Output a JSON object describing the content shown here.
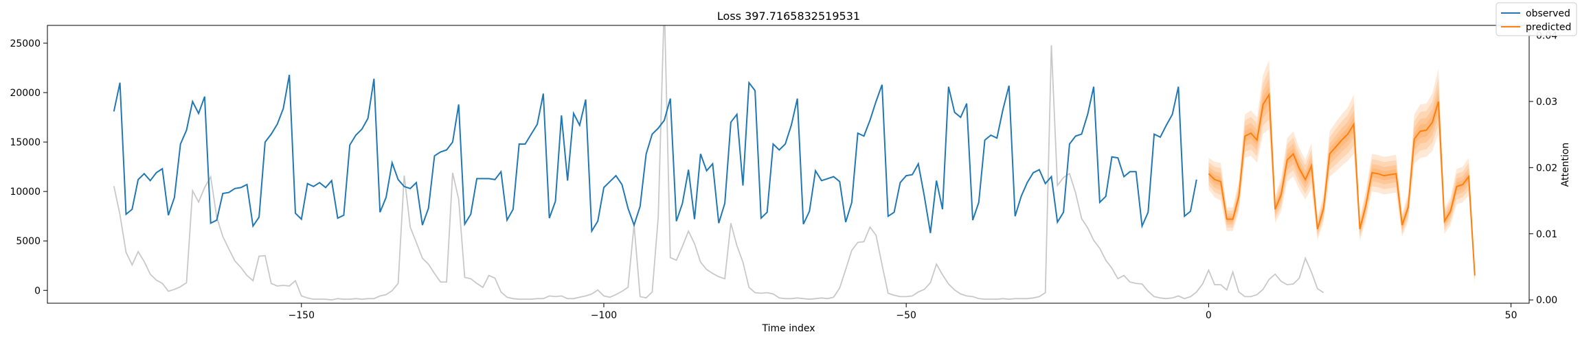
{
  "chart_data": {
    "type": "line",
    "title": "Loss 397.7165832519531",
    "xlabel": "Time index",
    "ylabel": "",
    "y2label": "Attention",
    "xlim": [
      -192,
      53
    ],
    "ylim": [
      -1300,
      26800
    ],
    "y2lim": [
      -0.0005,
      0.0415
    ],
    "xticks": [
      -150,
      -100,
      -50,
      0,
      50
    ],
    "xtick_labels": [
      "−150",
      "−100",
      "−50",
      "0",
      "50"
    ],
    "yticks": [
      0,
      5000,
      10000,
      15000,
      20000,
      25000
    ],
    "ytick_labels": [
      "0",
      "5000",
      "10000",
      "15000",
      "20000",
      "25000"
    ],
    "y2ticks": [
      0.0,
      0.01,
      0.02,
      0.03,
      0.04
    ],
    "y2tick_labels": [
      "0.00",
      "0.01",
      "0.02",
      "0.03",
      "0.04"
    ],
    "grid": false,
    "legend": {
      "placement": "top-right",
      "entries": [
        "observed",
        "predicted"
      ]
    },
    "colors": {
      "observed": "#1f77b4",
      "predicted": "#ff7f0e",
      "attention": "#c8c8c8"
    },
    "series": [
      {
        "name": "observed",
        "x_start": -181,
        "values": [
          18100,
          21000,
          7700,
          8200,
          11200,
          11800,
          11100,
          11900,
          12300,
          7600,
          9400,
          14800,
          16200,
          19100,
          17900,
          19600,
          6800,
          7100,
          9800,
          9900,
          10300,
          10400,
          10700,
          6500,
          7400,
          15000,
          15800,
          16800,
          18400,
          21800,
          7800,
          7200,
          10800,
          10500,
          10900,
          10400,
          11100,
          7300,
          7600,
          14700,
          15700,
          16300,
          17400,
          21400,
          7900,
          9400,
          12900,
          11200,
          10500,
          10300,
          10900,
          6600,
          8300,
          13600,
          14000,
          14200,
          15000,
          18800,
          6700,
          7700,
          11300,
          11300,
          11300,
          11200,
          12000,
          7100,
          8200,
          14800,
          14800,
          15800,
          16800,
          19900,
          7300,
          9000,
          17700,
          11100,
          17900,
          16700,
          19300,
          6000,
          7000,
          10400,
          11000,
          11600,
          10700,
          8300,
          6600,
          8500,
          13800,
          15800,
          16400,
          17200,
          19400,
          7000,
          8800,
          12200,
          7200,
          13800,
          12100,
          12800,
          6800,
          8800,
          17000,
          17800,
          10600,
          21000,
          20200,
          7300,
          7900,
          14800,
          14200,
          14800,
          16700,
          19400,
          6700,
          8000,
          12100,
          11100,
          11300,
          11500,
          11000,
          6900,
          8900,
          15900,
          15600,
          17200,
          19100,
          20800,
          7500,
          7900,
          10900,
          11600,
          11700,
          12800,
          9500,
          5800,
          11100,
          8200,
          20600,
          18000,
          17500,
          18900,
          7100,
          8900,
          15200,
          15700,
          15400,
          18300,
          20700,
          7500,
          9500,
          10900,
          11900,
          12200,
          10800,
          11500,
          6900,
          7900,
          14800,
          15600,
          15800,
          17800,
          20600,
          8900,
          9500,
          13500,
          13400,
          11500,
          12000,
          12000,
          6500,
          7900,
          15800,
          15500,
          16700,
          17800,
          20600,
          7500,
          8000,
          11200
        ]
      },
      {
        "name": "predicted",
        "x_start": 0,
        "values": [
          11800,
          11200,
          11000,
          7200,
          7200,
          9500,
          15600,
          15900,
          15200,
          18800,
          19800,
          8200,
          9700,
          13200,
          13800,
          12300,
          11200,
          12600,
          6200,
          8300,
          13800,
          14500,
          15200,
          15800,
          16800,
          6200,
          8600,
          11900,
          11800,
          11600,
          11700,
          11800,
          6600,
          8400,
          15300,
          16100,
          16200,
          17000,
          19100,
          7000,
          8000,
          10500,
          10700,
          11500,
          1500
        ]
      },
      {
        "name": "attention",
        "axis": "right",
        "x_start": -181,
        "values": [
          0.0172,
          0.0129,
          0.0072,
          0.0053,
          0.0073,
          0.0058,
          0.0039,
          0.003,
          0.0025,
          0.0013,
          0.0016,
          0.002,
          0.0026,
          0.0165,
          0.0148,
          0.017,
          0.0186,
          0.0125,
          0.0096,
          0.0077,
          0.0059,
          0.0049,
          0.0037,
          0.0029,
          0.0066,
          0.0067,
          0.0025,
          0.0021,
          0.0022,
          0.0021,
          0.0029,
          0.0006,
          0.0003,
          0.0001,
          0.0001,
          0.0001,
          0.0,
          0.0002,
          0.0001,
          0.0001,
          0.0002,
          0.0001,
          0.0002,
          0.0002,
          0.0006,
          0.0008,
          0.0014,
          0.0025,
          0.0188,
          0.011,
          0.0087,
          0.0063,
          0.0054,
          0.004,
          0.0027,
          0.0027,
          0.0192,
          0.0152,
          0.0034,
          0.0032,
          0.0025,
          0.0019,
          0.0037,
          0.0033,
          0.0012,
          0.0004,
          0.0002,
          0.0001,
          0.0001,
          0.0001,
          0.0002,
          0.0002,
          0.0006,
          0.0005,
          0.0006,
          0.0002,
          0.0002,
          0.0004,
          0.0006,
          0.0009,
          0.0015,
          0.0006,
          0.0004,
          0.0008,
          0.0013,
          0.0019,
          0.0114,
          0.0005,
          0.0003,
          0.0012,
          0.0125,
          0.045,
          0.0064,
          0.006,
          0.0081,
          0.0104,
          0.0085,
          0.0057,
          0.0046,
          0.004,
          0.0035,
          0.0032,
          0.0116,
          0.0082,
          0.0057,
          0.0019,
          0.0011,
          0.001,
          0.0011,
          0.0009,
          0.0003,
          0.0002,
          0.0002,
          0.0003,
          0.0002,
          0.0001,
          0.0002,
          0.0003,
          0.0002,
          0.0004,
          0.0018,
          0.0046,
          0.0075,
          0.0087,
          0.0088,
          0.011,
          0.0098,
          0.0053,
          0.001,
          0.0007,
          0.0005,
          0.0005,
          0.0006,
          0.0012,
          0.0016,
          0.0026,
          0.0054,
          0.0038,
          0.0024,
          0.0015,
          0.0009,
          0.0006,
          0.0005,
          0.0002,
          0.0001,
          0.0001,
          0.0001,
          0.0002,
          0.0001,
          0.0002,
          0.0002,
          0.0002,
          0.0003,
          0.0005,
          0.0011,
          0.0385,
          0.0173,
          0.0185,
          0.0191,
          0.0162,
          0.0123,
          0.0109,
          0.009,
          0.0078,
          0.006,
          0.0048,
          0.0032,
          0.0037,
          0.0027,
          0.0025,
          0.0024,
          0.0013,
          0.0005,
          0.0003,
          0.0002,
          0.0003,
          0.0006,
          0.0002,
          0.0005,
          0.0012,
          0.0024,
          0.0045,
          0.0023,
          0.0023,
          0.0015,
          0.0042,
          0.0012,
          0.0005,
          0.0005,
          0.0008,
          0.0016,
          0.0031,
          0.0039,
          0.0028,
          0.0023,
          0.0024,
          0.0033,
          0.0063,
          0.0042,
          0.0017,
          0.0011
        ]
      }
    ],
    "quantile_bands": {
      "x_start": 0,
      "half_widths": [
        1600,
        1800,
        1900,
        1200,
        1200,
        1600,
        2200,
        2300,
        2300,
        3000,
        3500,
        1400,
        1700,
        2200,
        2300,
        2100,
        2000,
        2300,
        1100,
        1400,
        2300,
        2500,
        2600,
        2700,
        3000,
        1200,
        1500,
        1900,
        1900,
        1900,
        1900,
        1900,
        1200,
        1400,
        2500,
        2700,
        2700,
        2900,
        3300,
        1300,
        1400,
        1800,
        1800,
        1900,
        900
      ]
    }
  }
}
